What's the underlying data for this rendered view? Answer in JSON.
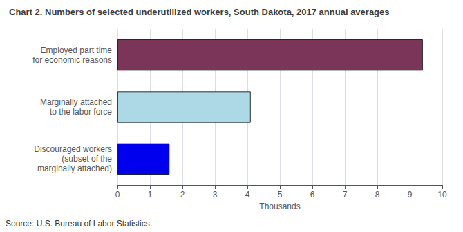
{
  "chart_data": {
    "type": "bar",
    "orientation": "horizontal",
    "title": "Chart 2. Numbers of selected underutilized workers, South Dakota, 2017 annual averages",
    "categories": [
      "Employed part time\nfor economic reasons",
      "Marginally attached\nto the labor force",
      "Discouraged workers\n(subset of the\nmarginally attached)"
    ],
    "values": [
      9.4,
      4.1,
      1.6
    ],
    "colors": [
      "#7B3558",
      "#ADD8E6",
      "#0000EE"
    ],
    "xlabel": "Thousands",
    "xlim": [
      0,
      10
    ],
    "xticks": [
      0,
      1,
      2,
      3,
      4,
      5,
      6,
      7,
      8,
      9,
      10
    ],
    "grid": true,
    "annotations": [
      "Source: U.S. Bureau of Labor Statistics."
    ]
  }
}
